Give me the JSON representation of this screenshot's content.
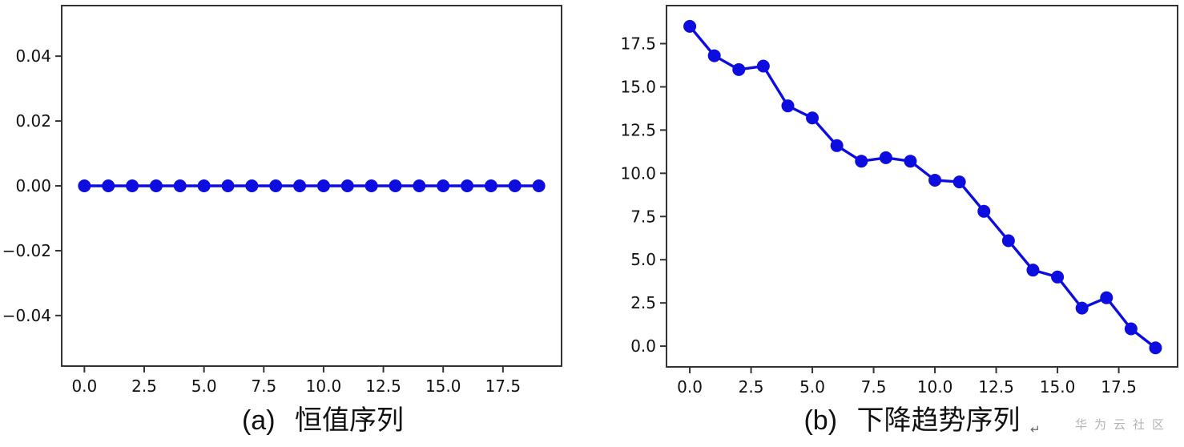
{
  "chart_data": [
    {
      "id": "constant-series",
      "type": "line",
      "caption_index": "(a)",
      "caption_label": "恒值序列",
      "x": [
        0,
        1,
        2,
        3,
        4,
        5,
        6,
        7,
        8,
        9,
        10,
        11,
        12,
        13,
        14,
        15,
        16,
        17,
        18,
        19
      ],
      "y": [
        0,
        0,
        0,
        0,
        0,
        0,
        0,
        0,
        0,
        0,
        0,
        0,
        0,
        0,
        0,
        0,
        0,
        0,
        0,
        0
      ],
      "xlim": [
        -0.95,
        19.95
      ],
      "ylim": [
        -0.0556,
        0.0556
      ],
      "xticks": [
        0,
        2.5,
        5,
        7.5,
        10,
        12.5,
        15,
        17.5
      ],
      "xtick_labels": [
        "0.0",
        "2.5",
        "5.0",
        "7.5",
        "10.0",
        "12.5",
        "15.0",
        "17.5"
      ],
      "yticks": [
        0.04,
        0.02,
        0,
        -0.02,
        -0.04
      ],
      "ytick_labels": [
        "0.04",
        "0.02",
        "0.00",
        "−0.02",
        "−0.04"
      ],
      "xlabel": "",
      "ylabel": "",
      "grid": false,
      "legend": null,
      "line_color": "#0d0de0",
      "marker": "circle"
    },
    {
      "id": "descending-trend-series",
      "type": "line",
      "caption_index": "(b)",
      "caption_label": "下降趋势序列",
      "caption_mark": "↵",
      "x": [
        0,
        1,
        2,
        3,
        4,
        5,
        6,
        7,
        8,
        9,
        10,
        11,
        12,
        13,
        14,
        15,
        16,
        17,
        18,
        19
      ],
      "y": [
        18.5,
        16.8,
        16.0,
        16.2,
        13.9,
        13.2,
        11.6,
        10.7,
        10.9,
        10.7,
        9.6,
        9.5,
        7.8,
        6.1,
        4.4,
        4.0,
        2.2,
        2.8,
        1.0,
        -0.1
      ],
      "xlim": [
        -0.95,
        19.9
      ],
      "ylim": [
        -1.2,
        19.7
      ],
      "xticks": [
        0,
        2.5,
        5,
        7.5,
        10,
        12.5,
        15,
        17.5
      ],
      "xtick_labels": [
        "0.0",
        "2.5",
        "5.0",
        "7.5",
        "10.0",
        "12.5",
        "15.0",
        "17.5"
      ],
      "yticks": [
        17.5,
        15,
        12.5,
        10,
        7.5,
        5,
        2.5,
        0
      ],
      "ytick_labels": [
        "17.5",
        "15.0",
        "12.5",
        "10.0",
        "7.5",
        "5.0",
        "2.5",
        "0.0"
      ],
      "xlabel": "",
      "ylabel": "",
      "grid": false,
      "legend": null,
      "line_color": "#0d0de0",
      "marker": "circle"
    }
  ],
  "style_colors": {
    "axis_border": "#333333",
    "tick_label": "#111111",
    "caption_text": "#111111"
  },
  "watermark": {
    "text": "华为云社区",
    "color": "#b3b3b3"
  }
}
